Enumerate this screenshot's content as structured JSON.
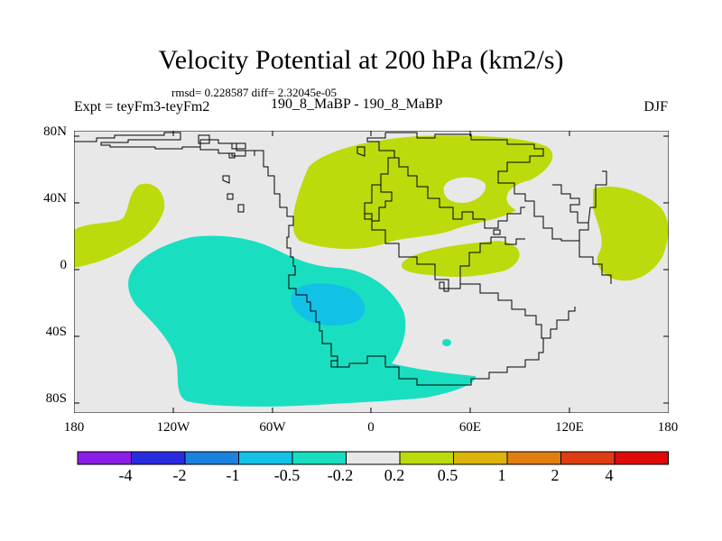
{
  "header": {
    "title": "Velocity Potential at 200 hPa (km2/s)",
    "stats": "rmsd= 0.228587 diff= 2.32045e-05",
    "experiment": "Expt = teyFm3-teyFm2",
    "subtitle": "190_8_MaBP - 190_8_MaBP",
    "season": "DJF"
  },
  "map": {
    "lat_ticks": [
      "80N",
      "40N",
      "0",
      "40S",
      "80S"
    ],
    "lon_ticks": [
      "180",
      "120W",
      "60W",
      "0",
      "60E",
      "120E",
      "180"
    ],
    "colors": {
      "background": "#e8e8e8",
      "positive_fill": "#bdda0c",
      "negative_fill": "#19dfc0",
      "strong_negative_fill": "#12c2e6",
      "coastline": "#000000"
    }
  },
  "colorbar": {
    "labels": [
      "-4",
      "-2",
      "-1",
      "-0.5",
      "-0.2",
      "0.2",
      "0.5",
      "1",
      "2",
      "4"
    ],
    "colors": [
      "#8a1ee6",
      "#2b2be0",
      "#1c82e0",
      "#12c2e6",
      "#19dfc0",
      "#e8e8e8",
      "#bdda0c",
      "#dcb40a",
      "#e07e12",
      "#e03c12",
      "#e00a0a"
    ]
  }
}
